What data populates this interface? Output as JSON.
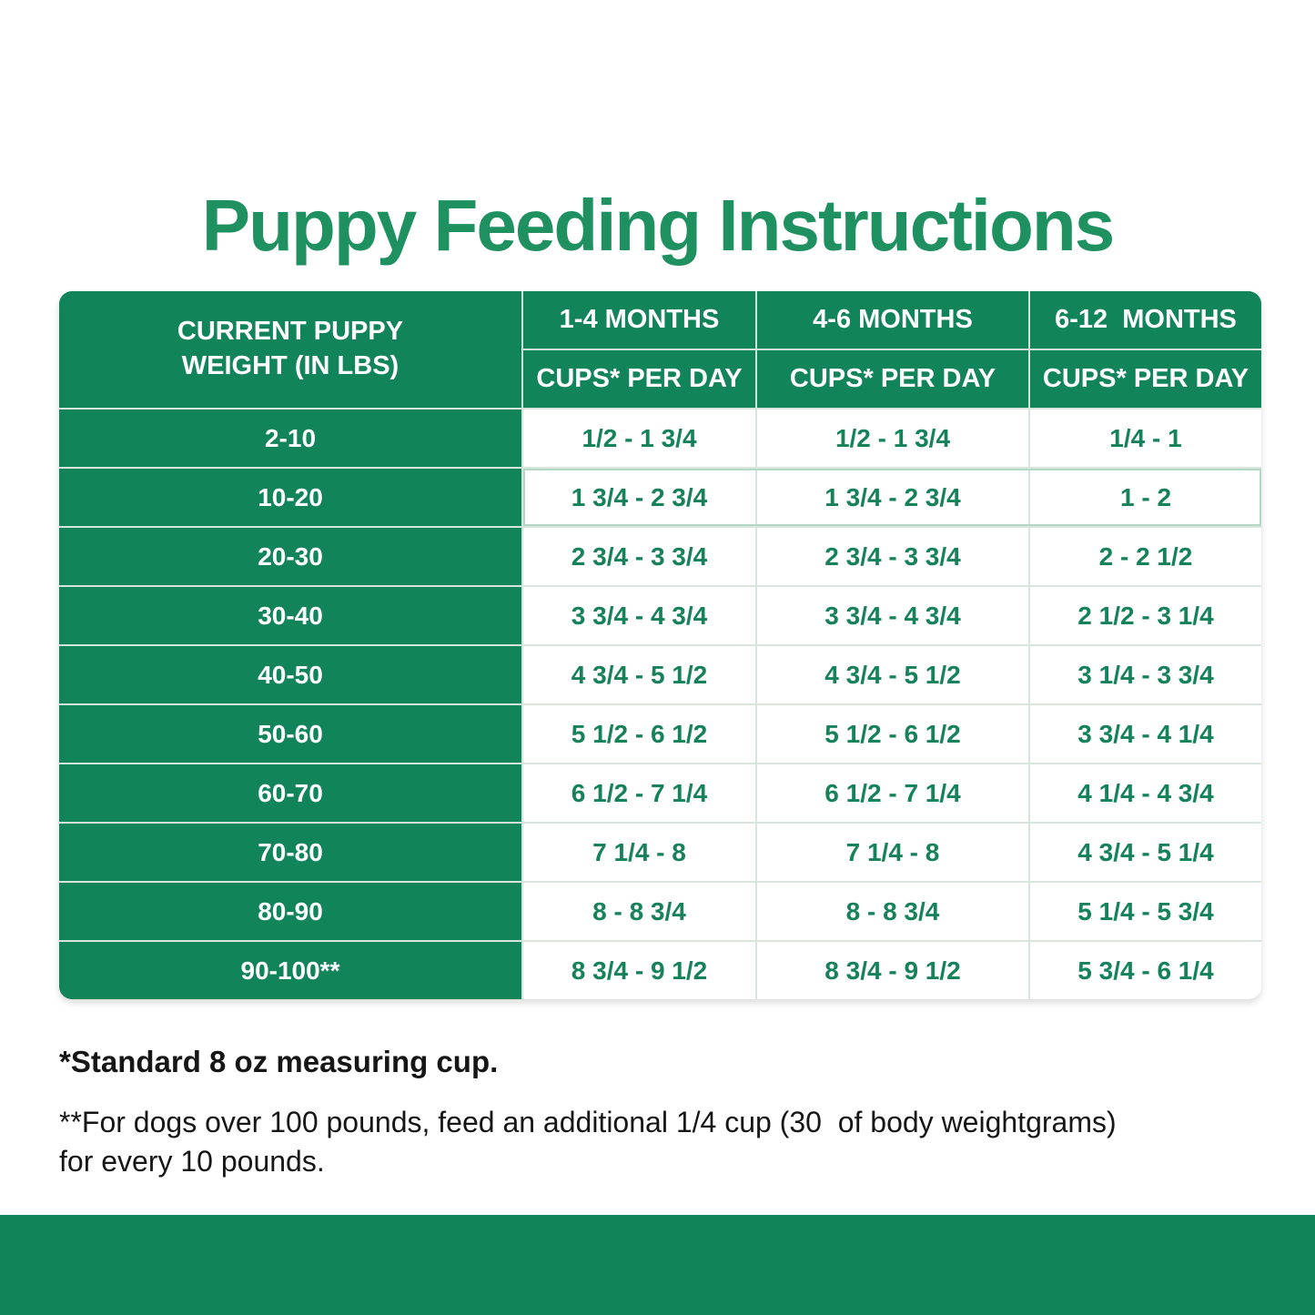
{
  "colors": {
    "brand_green": "#12845a",
    "title_green": "#1f9161",
    "value_green": "#15825a",
    "grid_line": "#d7e6dc",
    "highlight_outline": "#b5d8c6",
    "footnote_text": "#161616"
  },
  "title": "Puppy Feeding Instructions",
  "table": {
    "weight_header": "CURRENT PUPPY\nWEIGHT (IN LBS)",
    "age_columns": [
      {
        "period": "1-4 MONTHS",
        "unit": "CUPS* PER DAY"
      },
      {
        "period": "4-6 MONTHS",
        "unit": "CUPS* PER DAY"
      },
      {
        "period": "6-12  MONTHS",
        "unit": "CUPS* PER DAY"
      }
    ],
    "rows": [
      {
        "weight": "2-10",
        "values": [
          "1/2 - 1 3/4",
          "1/2 - 1 3/4",
          "1/4 - 1"
        ]
      },
      {
        "weight": "10-20",
        "values": [
          "1 3/4 - 2 3/4",
          "1 3/4 - 2 3/4",
          "1 - 2"
        ]
      },
      {
        "weight": "20-30",
        "values": [
          "2 3/4 - 3 3/4",
          "2 3/4 - 3 3/4",
          "2 - 2 1/2"
        ]
      },
      {
        "weight": "30-40",
        "values": [
          "3 3/4 - 4 3/4",
          "3 3/4 - 4 3/4",
          "2 1/2 - 3 1/4"
        ]
      },
      {
        "weight": "40-50",
        "values": [
          "4 3/4 - 5 1/2",
          "4 3/4 - 5 1/2",
          "3 1/4 - 3 3/4"
        ]
      },
      {
        "weight": "50-60",
        "values": [
          "5 1/2 - 6 1/2",
          "5 1/2 - 6 1/2",
          "3 3/4 - 4 1/4"
        ]
      },
      {
        "weight": "60-70",
        "values": [
          "6 1/2 - 7 1/4",
          "6 1/2 - 7 1/4",
          "4 1/4 - 4 3/4"
        ]
      },
      {
        "weight": "70-80",
        "values": [
          "7 1/4 - 8",
          "7 1/4 - 8",
          "4 3/4 - 5 1/4"
        ]
      },
      {
        "weight": "80-90",
        "values": [
          "8 - 8 3/4",
          "8 - 8 3/4",
          "5 1/4 - 5 3/4"
        ]
      },
      {
        "weight": "90-100**",
        "values": [
          "8 3/4 - 9 1/2",
          "8 3/4 - 9 1/2",
          "5 3/4 - 6 1/4"
        ]
      }
    ]
  },
  "footnotes": {
    "cup_note": "*Standard 8 oz measuring cup.",
    "large_dog_note": "**For dogs over 100 pounds, feed an additional 1/4 cup (30  of body weightgrams)\nfor every 10 pounds."
  }
}
